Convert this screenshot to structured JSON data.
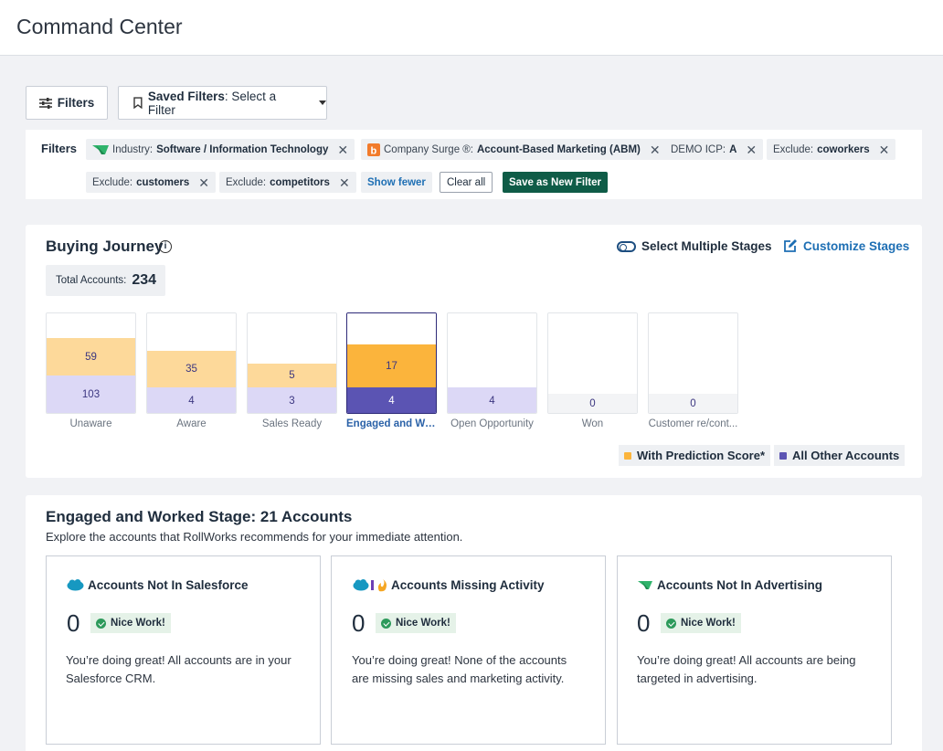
{
  "header": {
    "title": "Command Center"
  },
  "toolbar": {
    "filters_label": "Filters",
    "saved_filters_label": "Saved Filters",
    "saved_filters_value": ": Select a Filter"
  },
  "filters": {
    "label": "Filters",
    "chips": [
      {
        "prefix": "Industry:",
        "value": "Software / Information Technology"
      },
      {
        "prefix": "Company Surge ®:",
        "value": "Account-Based Marketing (ABM)"
      },
      {
        "prefix": "DEMO ICP:",
        "value": "A"
      },
      {
        "prefix": "Exclude:",
        "value": "coworkers"
      },
      {
        "prefix": "Exclude:",
        "value": "customers"
      },
      {
        "prefix": "Exclude:",
        "value": "competitors"
      }
    ],
    "show_fewer": "Show fewer",
    "clear_all": "Clear all",
    "save_new": "Save as New Filter"
  },
  "journey": {
    "title": "Buying Journey",
    "select_multiple": "Select Multiple Stages",
    "customize": "Customize Stages",
    "total_label": "Total Accounts:",
    "total_value": "234",
    "stages": [
      {
        "label": "Unaware",
        "prediction": "59",
        "other": "103"
      },
      {
        "label": "Aware",
        "prediction": "35",
        "other": "4"
      },
      {
        "label": "Sales Ready",
        "prediction": "5",
        "other": "3"
      },
      {
        "label": "Engaged and Wo...",
        "prediction": "17",
        "other": "4",
        "selected": true
      },
      {
        "label": "Open Opportunity",
        "prediction": "",
        "other": "4"
      },
      {
        "label": "Won",
        "prediction": "",
        "other": "0"
      },
      {
        "label": "Customer re/cont...",
        "prediction": "",
        "other": "0"
      }
    ],
    "legend": {
      "prediction": "With Prediction Score*",
      "other": "All Other Accounts"
    },
    "colors": {
      "prediction_light": "#fdd99a",
      "prediction_selected": "#fbb43c",
      "other_light": "#dcd8f6",
      "other_selected": "#5b54b3",
      "empty": "#f3f4f6"
    }
  },
  "engaged": {
    "title": "Engaged and Worked Stage: 21 Accounts",
    "subtitle": "Explore the accounts that RollWorks recommends for your immediate attention.",
    "cards": [
      {
        "icon": "salesforce-icon",
        "title": "Accounts Not In Salesforce",
        "count": "0",
        "badge": "Nice Work!",
        "desc1": "You’re doing great! All accounts are in your",
        "desc2": "Salesforce CRM."
      },
      {
        "icon": "activity-icon",
        "title": "Accounts Missing Activity",
        "count": "0",
        "badge": "Nice Work!",
        "desc1": "You’re doing great! None of the accounts",
        "desc2": "are missing sales and marketing activity."
      },
      {
        "icon": "advertising-icon",
        "title": "Accounts Not In Advertising",
        "count": "0",
        "badge": "Nice Work!",
        "desc1": "You’re doing great! All accounts are being",
        "desc2": "targeted in advertising."
      }
    ]
  }
}
